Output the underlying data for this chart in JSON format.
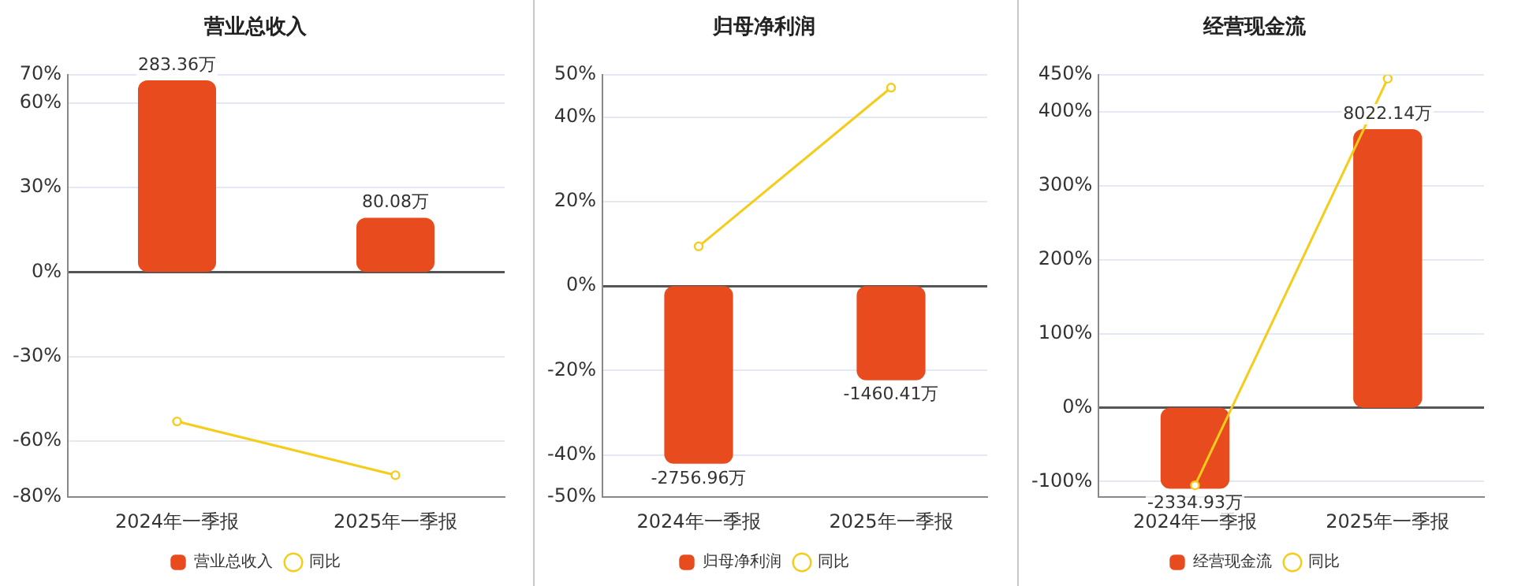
{
  "chart_data": [
    {
      "type": "bar",
      "title": "营业总收入",
      "categories": [
        "2024年一季报",
        "2025年一季报"
      ],
      "series": [
        {
          "name": "营业总收入",
          "axis": "y2",
          "color": "#e84c1e",
          "values": [
            283.36,
            80.08
          ],
          "value_labels": [
            "283.36万",
            "80.08万"
          ]
        },
        {
          "name": "同比",
          "type": "line",
          "color": "#f5cc1a",
          "values": [
            -53.1,
            -72.2
          ]
        }
      ],
      "ylim": [
        -80,
        70
      ],
      "yticks": [
        {
          "value": -80,
          "label": "-80%"
        },
        {
          "value": -60,
          "label": "-60%"
        },
        {
          "value": -30,
          "label": "-30%"
        },
        {
          "value": 0,
          "label": "0%"
        },
        {
          "value": 30,
          "label": "30%"
        },
        {
          "value": 60,
          "label": "60%"
        },
        {
          "value": 70,
          "label": "70%"
        }
      ],
      "y2lim": [
        -332.8,
        291.2
      ],
      "grid": "y",
      "legend": "bottom",
      "marker": "circle"
    },
    {
      "type": "bar",
      "title": "归母净利润",
      "categories": [
        "2024年一季报",
        "2025年一季报"
      ],
      "series": [
        {
          "name": "归母净利润",
          "axis": "y2",
          "color": "#e84c1e",
          "values": [
            -2756.96,
            -1460.41
          ],
          "value_labels": [
            "-2756.96万",
            "-1460.41万"
          ]
        },
        {
          "name": "同比",
          "type": "line",
          "color": "#f5cc1a",
          "values": [
            9.4,
            47.0
          ]
        }
      ],
      "ylim": [
        -50,
        50
      ],
      "yticks": [
        {
          "value": -50,
          "label": "-50%"
        },
        {
          "value": -40,
          "label": "-40%"
        },
        {
          "value": -20,
          "label": "-20%"
        },
        {
          "value": 0,
          "label": "0%"
        },
        {
          "value": 20,
          "label": "20%"
        },
        {
          "value": 40,
          "label": "40%"
        },
        {
          "value": 50,
          "label": "50%"
        }
      ],
      "y2lim": [
        -3275,
        3275
      ],
      "grid": "y",
      "legend": "bottom",
      "marker": "circle"
    },
    {
      "type": "bar",
      "title": "经营现金流",
      "categories": [
        "2024年一季报",
        "2025年一季报"
      ],
      "series": [
        {
          "name": "经营现金流",
          "axis": "y2",
          "color": "#e84c1e",
          "values": [
            -2334.93,
            8022.14
          ],
          "value_labels": [
            "-2334.93万",
            "8022.14万"
          ]
        },
        {
          "name": "同比",
          "type": "line",
          "color": "#f5cc1a",
          "values": [
            -105,
            445
          ]
        }
      ],
      "ylim": [
        -121,
        450
      ],
      "yticks": [
        {
          "value": -100,
          "label": "-100%"
        },
        {
          "value": 0,
          "label": "0%"
        },
        {
          "value": 100,
          "label": "100%"
        },
        {
          "value": 200,
          "label": "200%"
        },
        {
          "value": 300,
          "label": "300%"
        },
        {
          "value": 400,
          "label": "400%"
        },
        {
          "value": 450,
          "label": "450%"
        }
      ],
      "y2lim": [
        -2577,
        9585
      ],
      "grid": "y",
      "legend": "bottom",
      "marker": "circle"
    }
  ]
}
